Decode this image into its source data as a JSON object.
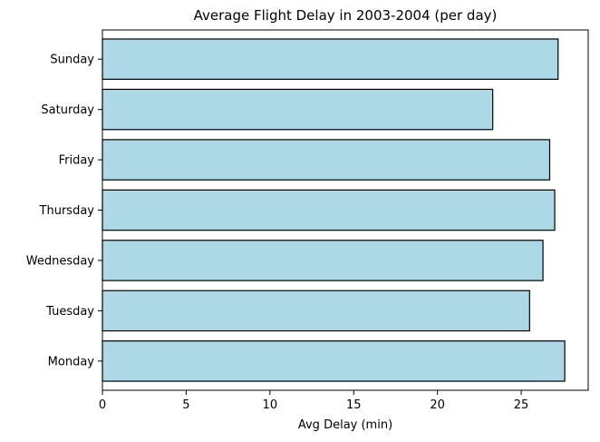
{
  "chart_data": {
    "type": "bar",
    "orientation": "horizontal",
    "title": "Average Flight Delay in 2003-2004 (per day)",
    "xlabel": "Avg Delay (min)",
    "ylabel": "",
    "categories": [
      "Monday",
      "Tuesday",
      "Wednesday",
      "Thursday",
      "Friday",
      "Saturday",
      "Sunday"
    ],
    "values": [
      27.6,
      25.5,
      26.3,
      27.0,
      26.7,
      23.3,
      27.2
    ],
    "xlim": [
      0,
      29
    ],
    "xticks": [
      0,
      5,
      10,
      15,
      20,
      25
    ],
    "grid": false,
    "bar_color": "#add8e6",
    "edge_color": "#000000"
  }
}
